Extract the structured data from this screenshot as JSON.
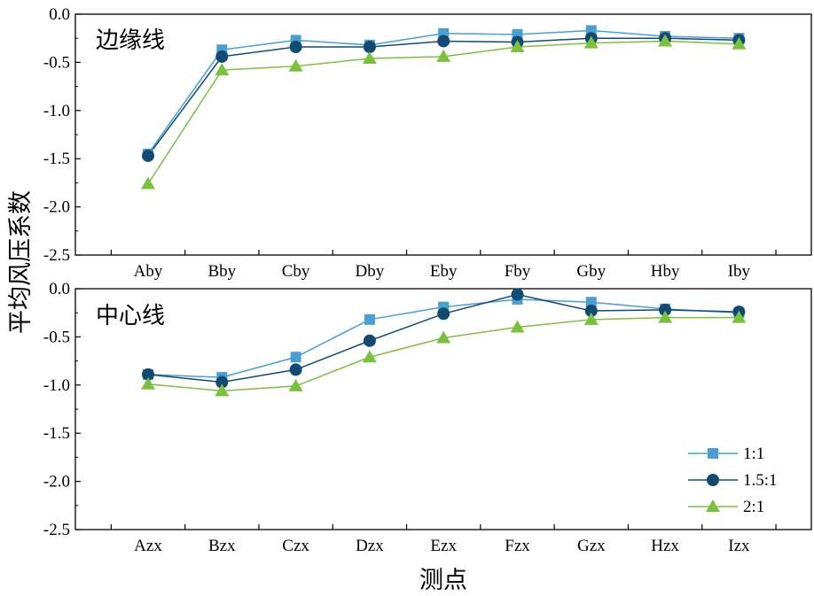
{
  "colors": {
    "s1": "#4a9fd0",
    "s2": "#134a72",
    "s3": "#7cc040",
    "axis": "#000000"
  },
  "chart_data": [
    {
      "type": "line",
      "panel": "top",
      "title": "边缘线",
      "categories": [
        "Aby",
        "Bby",
        "Cby",
        "Dby",
        "Eby",
        "Fby",
        "Gby",
        "Hby",
        "Iby"
      ],
      "ylim": [
        -2.5,
        0.0
      ],
      "yticks": [
        "0.0",
        "-0.5",
        "-1.0",
        "-1.5",
        "-2.0",
        "-2.5"
      ],
      "series": [
        {
          "name": "1:1",
          "marker": "square",
          "color": "#4a9fd0",
          "values": [
            -1.45,
            -0.37,
            -0.27,
            -0.32,
            -0.2,
            -0.21,
            -0.17,
            -0.23,
            -0.25
          ]
        },
        {
          "name": "1.5:1",
          "marker": "circle",
          "color": "#134a72",
          "values": [
            -1.47,
            -0.44,
            -0.34,
            -0.34,
            -0.28,
            -0.29,
            -0.25,
            -0.25,
            -0.27
          ]
        },
        {
          "name": "2:1",
          "marker": "triangle",
          "color": "#7cc040",
          "values": [
            -1.76,
            -0.58,
            -0.54,
            -0.46,
            -0.44,
            -0.34,
            -0.3,
            -0.28,
            -0.31
          ]
        }
      ]
    },
    {
      "type": "line",
      "panel": "bottom",
      "title": "中心线",
      "categories": [
        "Azx",
        "Bzx",
        "Czx",
        "Dzx",
        "Ezx",
        "Fzx",
        "Gzx",
        "Hzx",
        "Izx"
      ],
      "ylim": [
        -2.5,
        0.0
      ],
      "yticks": [
        "0.0",
        "-0.5",
        "-1.0",
        "-1.5",
        "-2.0",
        "-2.5"
      ],
      "series": [
        {
          "name": "1:1",
          "marker": "square",
          "color": "#4a9fd0",
          "values": [
            -0.89,
            -0.92,
            -0.71,
            -0.32,
            -0.19,
            -0.11,
            -0.14,
            -0.21,
            -0.25
          ]
        },
        {
          "name": "1.5:1",
          "marker": "circle",
          "color": "#134a72",
          "values": [
            -0.89,
            -0.97,
            -0.84,
            -0.54,
            -0.26,
            -0.06,
            -0.23,
            -0.22,
            -0.24
          ]
        },
        {
          "name": "2:1",
          "marker": "triangle",
          "color": "#7cc040",
          "values": [
            -0.99,
            -1.06,
            -1.01,
            -0.71,
            -0.51,
            -0.4,
            -0.32,
            -0.3,
            -0.3
          ]
        }
      ]
    }
  ],
  "axes": {
    "ylabel": "平均风压系数",
    "xlabel": "测点"
  },
  "legend": {
    "position": "bottom-right",
    "entries": [
      "1:1",
      "1.5:1",
      "2:1"
    ]
  }
}
